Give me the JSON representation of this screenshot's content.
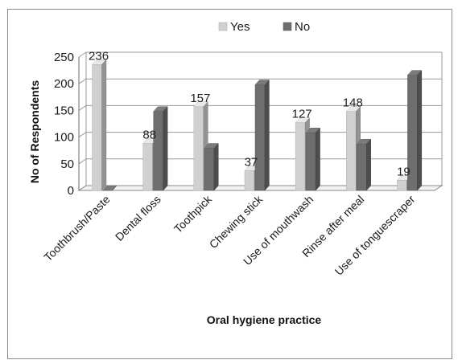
{
  "chart_data": {
    "type": "bar",
    "categories": [
      "Toothbrush/Paste",
      "Dental floss",
      "Toothpick",
      "Chewing stick",
      "Use of mouthwash",
      "Rinse after meal",
      "Use of tonguescraper"
    ],
    "series": [
      {
        "name": "Yes",
        "values": [
          236,
          88,
          157,
          37,
          127,
          148,
          19
        ],
        "color": "#d0d0d0",
        "labels": [
          "236",
          "88",
          "157",
          "37",
          "127",
          "148",
          "19"
        ]
      },
      {
        "name": "No",
        "values": [
          0,
          148,
          79,
          198,
          108,
          87,
          216
        ],
        "color": "#6e6e6e"
      }
    ],
    "xlabel": "Oral hygiene practice",
    "ylabel": "No of Respondents",
    "ylim": [
      0,
      250
    ],
    "yticks": [
      0,
      50,
      100,
      150,
      200,
      250
    ],
    "grid": true,
    "legend": "top-center",
    "style": "3d-clustered-column"
  }
}
